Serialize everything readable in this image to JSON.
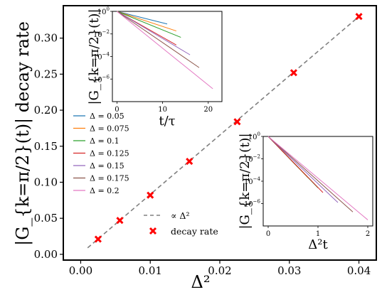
{
  "chart_data": [
    {
      "type": "scatter",
      "xlabel": "Δ²",
      "ylabel": "|G_{k=π/2}(t)| decay rate",
      "xlim": [
        -0.0025,
        0.0425
      ],
      "ylim": [
        -0.008,
        0.345
      ],
      "xticks": [
        0.0,
        0.01,
        0.02,
        0.03,
        0.04
      ],
      "xtick_labels": [
        "0.00",
        "0.01",
        "0.02",
        "0.03",
        "0.04"
      ],
      "yticks": [
        0.0,
        0.05,
        0.1,
        0.15,
        0.2,
        0.25,
        0.3
      ],
      "ytick_labels": [
        "0.00",
        "0.05",
        "0.10",
        "0.15",
        "0.20",
        "0.25",
        "0.30"
      ],
      "grid": false,
      "fit_line": {
        "name": "∝ Δ²",
        "x": [
          0.001,
          0.04
        ],
        "y": [
          0.009,
          0.33
        ],
        "color": "#808080",
        "style": "dashed"
      },
      "series": [
        {
          "name": "decay rate",
          "marker": "x",
          "color": "#ff0000",
          "x": [
            0.0025,
            0.005625,
            0.01,
            0.015625,
            0.0225,
            0.030625,
            0.04
          ],
          "y": [
            0.021,
            0.047,
            0.082,
            0.129,
            0.184,
            0.252,
            0.33
          ]
        }
      ],
      "legend": {
        "placement": "lower-center",
        "entries": [
          "∝ Δ²",
          "decay rate"
        ]
      }
    },
    {
      "type": "line",
      "xlabel": "t/τ",
      "ylabel": "|G_{k=π/2}(t)|",
      "yscale": "log",
      "xlim": [
        -1,
        23
      ],
      "ylim": [
        1e-08,
        1
      ],
      "xticks": [
        0,
        10,
        20
      ],
      "xtick_labels": [
        "0",
        "10",
        "20"
      ],
      "yticks": [
        1,
        0.01,
        0.0001,
        1e-06
      ],
      "ytick_labels": [
        "10^0",
        "10^-2",
        "10^-4",
        "10^-6"
      ],
      "series": [
        {
          "name": "Δ = 0.05",
          "color": "#1f77b4",
          "x": [
            0,
            11
          ],
          "y": [
            1.0,
            0.076
          ]
        },
        {
          "name": "Δ = 0.075",
          "color": "#ff7f0e",
          "x": [
            0,
            13
          ],
          "y": [
            1.0,
            0.0183
          ]
        },
        {
          "name": "Δ = 0.1",
          "color": "#2ca02c",
          "x": [
            0,
            14
          ],
          "y": [
            1.0,
            0.00496
          ]
        },
        {
          "name": "Δ = 0.125",
          "color": "#d62728",
          "x": [
            0,
            13
          ],
          "y": [
            1.0,
            0.00104
          ]
        },
        {
          "name": "Δ = 0.15",
          "color": "#9467bd",
          "x": [
            0,
            16
          ],
          "y": [
            1.0,
            0.000141
          ]
        },
        {
          "name": "Δ = 0.175",
          "color": "#8c564b",
          "x": [
            0,
            18
          ],
          "y": [
            1.0,
            1.04e-05
          ]
        },
        {
          "name": "Δ = 0.2",
          "color": "#e377c2",
          "x": [
            0,
            21
          ],
          "y": [
            1.0,
            1.38e-07
          ]
        }
      ],
      "legend": {
        "placement": "left, below inset",
        "entries": [
          "Δ = 0.05",
          "Δ = 0.075",
          "Δ = 0.1",
          "Δ = 0.125",
          "Δ = 0.15",
          "Δ = 0.175",
          "Δ = 0.2"
        ]
      }
    },
    {
      "type": "line",
      "xlabel": "Δ²t",
      "ylabel": "|G_{k=π/2}(t)|",
      "yscale": "log",
      "xlim": [
        -0.1,
        2.1
      ],
      "ylim": [
        1e-08,
        1
      ],
      "xticks": [
        0,
        1,
        2
      ],
      "xtick_labels": [
        "0",
        "1",
        "2"
      ],
      "yticks": [
        1,
        0.01,
        0.0001,
        1e-06
      ],
      "ytick_labels": [
        "10^0",
        "10^-2",
        "10^-4",
        "10^-6"
      ],
      "series": [
        {
          "name": "Δ = 0.05",
          "color": "#1f77b4",
          "x": [
            0,
            0.6
          ],
          "y": [
            1.0,
            0.0017
          ]
        },
        {
          "name": "Δ = 0.075",
          "color": "#ff7f0e",
          "x": [
            0,
            0.8
          ],
          "y": [
            1.0,
            0.000203
          ]
        },
        {
          "name": "Δ = 0.1",
          "color": "#2ca02c",
          "x": [
            0,
            1.0
          ],
          "y": [
            1.0,
            2.54e-05
          ]
        },
        {
          "name": "Δ = 0.125",
          "color": "#d62728",
          "x": [
            0,
            1.1
          ],
          "y": [
            1.0,
            9.6e-06
          ]
        },
        {
          "name": "Δ = 0.15",
          "color": "#9467bd",
          "x": [
            0,
            1.4
          ],
          "y": [
            1.0,
            1.24e-06
          ]
        },
        {
          "name": "Δ = 0.175",
          "color": "#8c564b",
          "x": [
            0,
            1.7
          ],
          "y": [
            1.0,
            1.8e-07
          ]
        },
        {
          "name": "Δ = 0.2",
          "color": "#e377c2",
          "x": [
            0,
            2.0
          ],
          "y": [
            1.0,
            3.5e-08
          ]
        }
      ]
    }
  ]
}
